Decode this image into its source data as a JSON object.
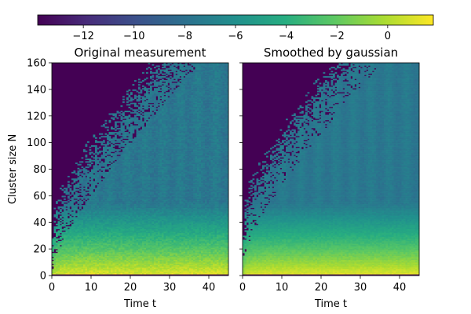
{
  "colorbar": {
    "colormap": "viridis",
    "range": [
      -13.8,
      1.8
    ],
    "ticks": [
      -12,
      -10,
      -8,
      -6,
      -4,
      -2,
      0
    ],
    "tick_labels": [
      "−12",
      "−10",
      "−8",
      "−6",
      "−4",
      "−2",
      "0"
    ]
  },
  "panels": [
    {
      "title": "Original measurement",
      "xlabel": "Time t",
      "ylabel": "Cluster size N",
      "xticks": [
        0,
        10,
        20,
        30,
        40
      ],
      "xtick_labels": [
        "0",
        "10",
        "20",
        "30",
        "40"
      ],
      "yticks": [
        0,
        20,
        40,
        60,
        80,
        100,
        120,
        140,
        160
      ],
      "ytick_labels": [
        "0",
        "20",
        "40",
        "60",
        "80",
        "100",
        "120",
        "140",
        "160"
      ],
      "show_ytick_labels": true
    },
    {
      "title": "Smoothed by gaussian",
      "xlabel": "Time t",
      "ylabel": "",
      "xticks": [
        0,
        10,
        20,
        30,
        40
      ],
      "xtick_labels": [
        "0",
        "10",
        "20",
        "30",
        "40"
      ],
      "yticks": [
        0,
        20,
        40,
        60,
        80,
        100,
        120,
        140,
        160
      ],
      "ytick_labels": [
        "",
        "",
        "",
        "",
        "",
        "",
        "",
        "",
        ""
      ],
      "show_ytick_labels": false
    }
  ],
  "chart_data": [
    {
      "type": "heatmap",
      "title": "Original measurement",
      "xlabel": "Time t",
      "ylabel": "Cluster size N",
      "xlim": [
        0,
        45
      ],
      "ylim": [
        0,
        160
      ],
      "colormap": "viridis",
      "color_range": [
        -13.8,
        1.8
      ],
      "background_value": -13.8,
      "model": {
        "front_coef": 0.35,
        "front_base": 15,
        "value_peak": 1.5,
        "value_decay_per_N": 0.3,
        "value_floor": -7.5,
        "zero_row_value": -13.8,
        "noise": 0.6,
        "smoothed": false
      }
    },
    {
      "type": "heatmap",
      "title": "Smoothed by gaussian",
      "xlabel": "Time t",
      "ylabel": "",
      "xlim": [
        0,
        45
      ],
      "ylim": [
        0,
        160
      ],
      "colormap": "viridis",
      "color_range": [
        -13.8,
        1.8
      ],
      "background_value": -13.8,
      "model": {
        "front_coef": 0.35,
        "front_base": 15,
        "value_peak": 1.5,
        "value_decay_per_N": 0.3,
        "value_floor": -7.5,
        "zero_row_value": -13.8,
        "noise": 0.35,
        "smoothed": true
      }
    }
  ]
}
